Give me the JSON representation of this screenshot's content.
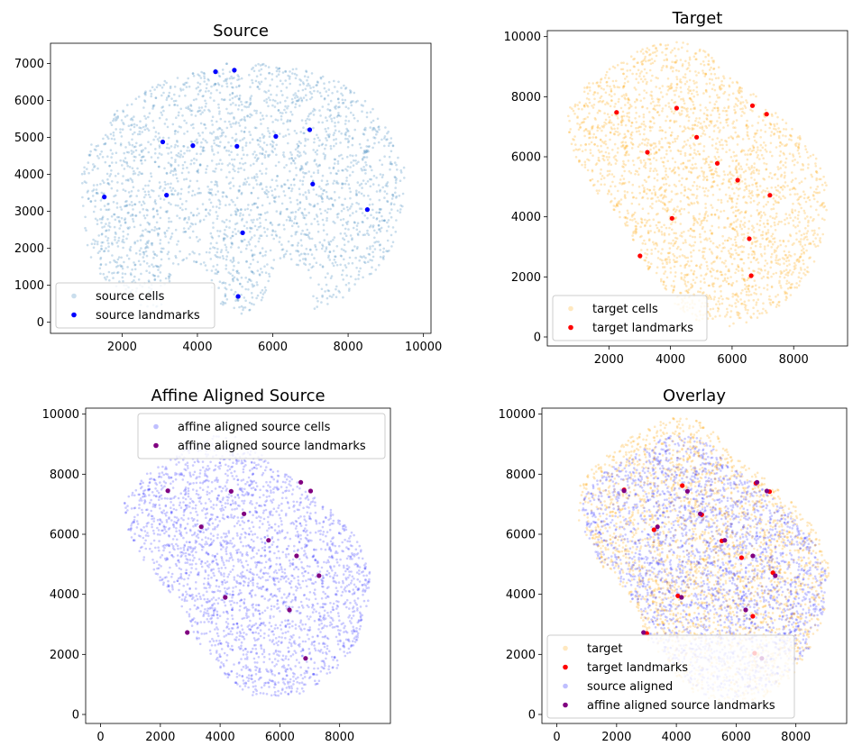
{
  "figure": {
    "background": "#ffffff"
  },
  "chart_data": [
    {
      "type": "scatter",
      "title": "Source",
      "xlim": [
        100,
        10200
      ],
      "ylim": [
        -300,
        7550
      ],
      "xticks": [
        2000,
        4000,
        6000,
        8000,
        10000
      ],
      "yticks": [
        0,
        1000,
        2000,
        3000,
        4000,
        5000,
        6000,
        7000
      ],
      "legend_position": "lower left",
      "series": [
        {
          "name": "source cells",
          "kind": "cells",
          "color": "#2c7bb6",
          "alpha": 0.25,
          "shape": "coronal-brain-slice",
          "extent_x": [
            700,
            9600
          ],
          "extent_y": [
            0,
            7100
          ]
        },
        {
          "name": "source landmarks",
          "kind": "landmarks",
          "color": "#0000ff",
          "points": [
            [
              4480,
              6780
            ],
            [
              4980,
              6820
            ],
            [
              3080,
              4880
            ],
            [
              3880,
              4780
            ],
            [
              5050,
              4760
            ],
            [
              6080,
              5030
            ],
            [
              6980,
              5210
            ],
            [
              1530,
              3390
            ],
            [
              3180,
              3440
            ],
            [
              7060,
              3740
            ],
            [
              8510,
              3050
            ],
            [
              5200,
              2420
            ],
            [
              5080,
              700
            ]
          ]
        }
      ]
    },
    {
      "type": "scatter",
      "title": "Target",
      "xlim": [
        0,
        9750
      ],
      "ylim": [
        -300,
        10200
      ],
      "xticks": [
        2000,
        4000,
        6000,
        8000
      ],
      "yticks": [
        0,
        2000,
        4000,
        6000,
        8000,
        10000
      ],
      "legend_position": "lower left",
      "series": [
        {
          "name": "target cells",
          "kind": "cells",
          "color": "#ffa500",
          "alpha": 0.25,
          "shape": "rotated-brain-slice",
          "extent_x": [
            400,
            9300
          ],
          "extent_y": [
            300,
            10000
          ]
        },
        {
          "name": "target landmarks",
          "kind": "landmarks",
          "color": "#ff0000",
          "points": [
            [
              2250,
              7480
            ],
            [
              4200,
              7620
            ],
            [
              6660,
              7700
            ],
            [
              7120,
              7420
            ],
            [
              4850,
              6650
            ],
            [
              3250,
              6150
            ],
            [
              5520,
              5780
            ],
            [
              6180,
              5220
            ],
            [
              7230,
              4720
            ],
            [
              4050,
              3950
            ],
            [
              6560,
              3270
            ],
            [
              3010,
              2700
            ],
            [
              6620,
              2040
            ]
          ]
        }
      ]
    },
    {
      "type": "scatter",
      "title": "Affine Aligned Source",
      "xlim": [
        -500,
        9700
      ],
      "ylim": [
        -300,
        10200
      ],
      "xticks": [
        0,
        2000,
        4000,
        6000,
        8000
      ],
      "yticks": [
        0,
        2000,
        4000,
        6000,
        8000,
        10000
      ],
      "legend_position": "upper right",
      "series": [
        {
          "name": "affine aligned source cells",
          "kind": "cells",
          "color": "#0000ff",
          "alpha": 0.2,
          "shape": "rotated-brain-slice",
          "extent_x": [
            600,
            9200
          ],
          "extent_y": [
            500,
            9400
          ]
        },
        {
          "name": "affine aligned source landmarks",
          "kind": "landmarks",
          "color": "#800080",
          "points": [
            [
              2250,
              7450
            ],
            [
              4370,
              7430
            ],
            [
              6700,
              7730
            ],
            [
              7030,
              7440
            ],
            [
              4800,
              6680
            ],
            [
              3370,
              6250
            ],
            [
              5620,
              5800
            ],
            [
              6560,
              5280
            ],
            [
              7310,
              4620
            ],
            [
              4170,
              3900
            ],
            [
              6320,
              3480
            ],
            [
              2900,
              2730
            ],
            [
              6860,
              1870
            ]
          ]
        }
      ]
    },
    {
      "type": "scatter",
      "title": "Overlay",
      "xlim": [
        -500,
        9700
      ],
      "ylim": [
        -300,
        10200
      ],
      "xticks": [
        0,
        2000,
        4000,
        6000,
        8000
      ],
      "yticks": [
        0,
        2000,
        4000,
        6000,
        8000,
        10000
      ],
      "legend_position": "lower left",
      "series": [
        {
          "name": "target",
          "kind": "cells",
          "color": "#ffa500",
          "alpha": 0.25,
          "shape": "rotated-brain-slice",
          "extent_x": [
            400,
            9300
          ],
          "extent_y": [
            300,
            10000
          ]
        },
        {
          "name": "target landmarks",
          "kind": "landmarks",
          "color": "#ff0000",
          "points": [
            [
              2250,
              7480
            ],
            [
              4200,
              7620
            ],
            [
              6660,
              7700
            ],
            [
              7120,
              7420
            ],
            [
              4850,
              6650
            ],
            [
              3250,
              6150
            ],
            [
              5520,
              5780
            ],
            [
              6180,
              5220
            ],
            [
              7230,
              4720
            ],
            [
              4050,
              3950
            ],
            [
              6560,
              3270
            ],
            [
              3010,
              2700
            ],
            [
              6620,
              2040
            ]
          ]
        },
        {
          "name": "source aligned",
          "kind": "cells",
          "color": "#0000ff",
          "alpha": 0.2,
          "shape": "rotated-brain-slice",
          "extent_x": [
            600,
            9200
          ],
          "extent_y": [
            500,
            9400
          ]
        },
        {
          "name": "affine aligned source landmarks",
          "kind": "landmarks",
          "color": "#800080",
          "points": [
            [
              2250,
              7450
            ],
            [
              4370,
              7430
            ],
            [
              6700,
              7730
            ],
            [
              7030,
              7440
            ],
            [
              4800,
              6680
            ],
            [
              3370,
              6250
            ],
            [
              5620,
              5800
            ],
            [
              6560,
              5280
            ],
            [
              7310,
              4620
            ],
            [
              4170,
              3900
            ],
            [
              6320,
              3480
            ],
            [
              2900,
              2730
            ],
            [
              6860,
              1870
            ]
          ]
        }
      ]
    }
  ]
}
